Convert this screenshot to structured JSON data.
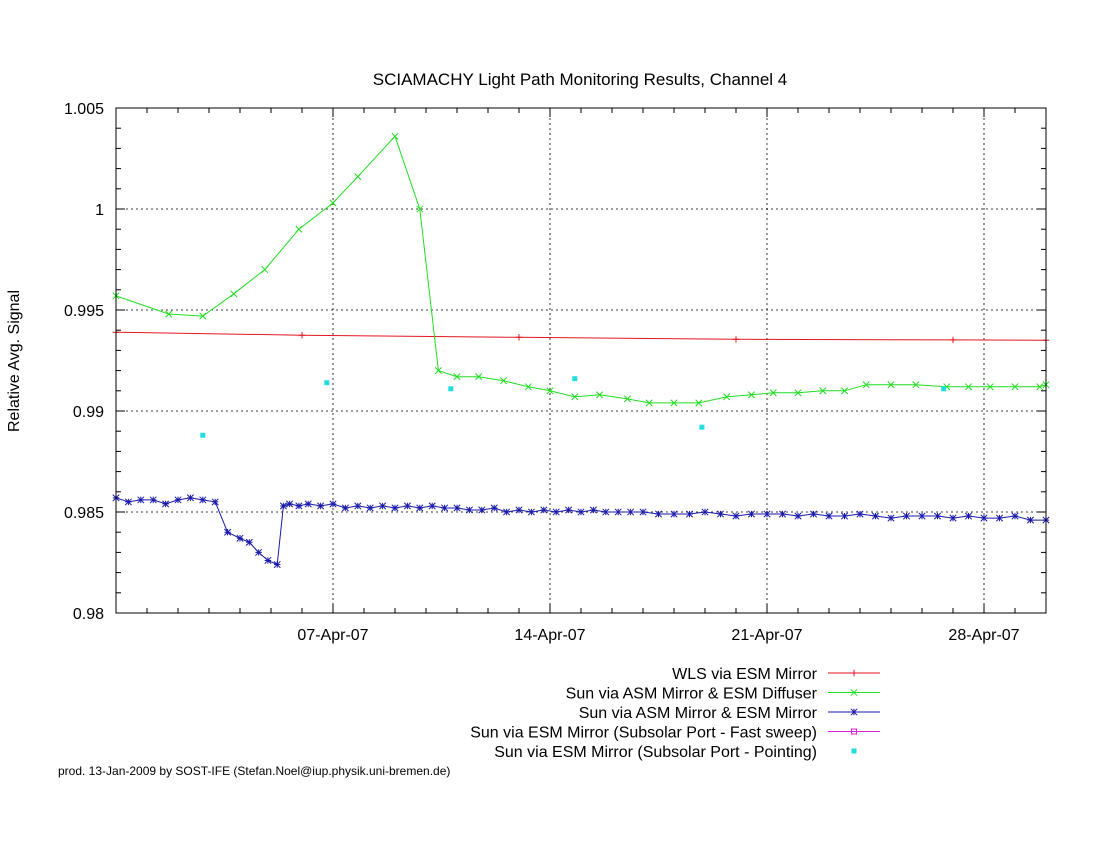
{
  "chart_data": {
    "type": "line",
    "title": "SCIAMACHY Light Path Monitoring Results, Channel 4",
    "xlabel": "",
    "ylabel": "Relative Avg. Signal",
    "xlim": [
      0.0,
      30.0
    ],
    "ylim": [
      0.98,
      1.005
    ],
    "x_unit": "days since 01-Apr-07",
    "x_ticks": [
      {
        "x": 7,
        "label": "07-Apr-07"
      },
      {
        "x": 14,
        "label": "14-Apr-07"
      },
      {
        "x": 21,
        "label": "21-Apr-07"
      },
      {
        "x": 28,
        "label": "28-Apr-07"
      }
    ],
    "y_ticks": [
      {
        "y": 0.98,
        "label": "0.98"
      },
      {
        "y": 0.985,
        "label": "0.985"
      },
      {
        "y": 0.99,
        "label": "0.99"
      },
      {
        "y": 0.995,
        "label": "0.995"
      },
      {
        "y": 1.0,
        "label": "1"
      },
      {
        "y": 1.005,
        "label": "1.005"
      }
    ],
    "grid": true,
    "legend_position": "bottom",
    "series": [
      {
        "name": "WLS via ESM Mirror",
        "color": "#e3161e",
        "marker": "plus",
        "style": "linespoints",
        "x": [
          0.0,
          6.0,
          13.0,
          20.0,
          27.0,
          30.0
        ],
        "y": [
          0.9939,
          0.99375,
          0.99365,
          0.99355,
          0.99352,
          0.9935
        ]
      },
      {
        "name": "Sun via ASM Mirror & ESM Diffuser",
        "color": "#22dd22",
        "marker": "cross",
        "style": "linespoints",
        "x": [
          0.0,
          1.7,
          2.8,
          3.8,
          4.8,
          5.9,
          7.0,
          7.8,
          9.0,
          9.8,
          10.4,
          11.0,
          11.7,
          12.5,
          13.3,
          14.0,
          14.8,
          15.6,
          16.5,
          17.2,
          18.0,
          18.8,
          19.7,
          20.5,
          21.2,
          22.0,
          22.8,
          23.5,
          24.2,
          25.0,
          25.8,
          26.8,
          27.5,
          28.2,
          29.0,
          29.8,
          30.0
        ],
        "y": [
          0.9957,
          0.9948,
          0.9947,
          0.9958,
          0.997,
          0.999,
          1.0003,
          1.0016,
          1.0036,
          1.0,
          0.992,
          0.9917,
          0.9917,
          0.9915,
          0.9912,
          0.991,
          0.9907,
          0.9908,
          0.9906,
          0.9904,
          0.9904,
          0.9904,
          0.9907,
          0.9908,
          0.9909,
          0.9909,
          0.991,
          0.991,
          0.9913,
          0.9913,
          0.9913,
          0.9912,
          0.9912,
          0.9912,
          0.9912,
          0.9912,
          0.9913
        ]
      },
      {
        "name": "Sun via ASM Mirror & ESM Mirror",
        "color": "#1a1aaa",
        "marker": "star",
        "style": "linespoints",
        "x": [
          0.0,
          0.4,
          0.8,
          1.2,
          1.6,
          2.0,
          2.4,
          2.8,
          3.2,
          3.6,
          4.0,
          4.3,
          4.6,
          4.9,
          5.2,
          5.4,
          5.6,
          5.9,
          6.2,
          6.6,
          7.0,
          7.4,
          7.8,
          8.2,
          8.6,
          9.0,
          9.4,
          9.8,
          10.2,
          10.6,
          11.0,
          11.4,
          11.8,
          12.2,
          12.6,
          13.0,
          13.4,
          13.8,
          14.2,
          14.6,
          15.0,
          15.4,
          15.8,
          16.2,
          16.6,
          17.0,
          17.5,
          18.0,
          18.5,
          19.0,
          19.5,
          20.0,
          20.5,
          21.0,
          21.5,
          22.0,
          22.5,
          23.0,
          23.5,
          24.0,
          24.5,
          25.0,
          25.5,
          26.0,
          26.5,
          27.0,
          27.5,
          28.0,
          28.5,
          29.0,
          29.5,
          30.0
        ],
        "y": [
          0.9857,
          0.9855,
          0.9856,
          0.9856,
          0.9854,
          0.9856,
          0.9857,
          0.9856,
          0.9855,
          0.984,
          0.9837,
          0.9835,
          0.983,
          0.9826,
          0.9824,
          0.9853,
          0.9854,
          0.9853,
          0.9854,
          0.9853,
          0.9854,
          0.9852,
          0.9853,
          0.9852,
          0.9853,
          0.9852,
          0.9853,
          0.9852,
          0.9853,
          0.9852,
          0.9852,
          0.9851,
          0.9851,
          0.9852,
          0.985,
          0.9851,
          0.985,
          0.9851,
          0.985,
          0.9851,
          0.985,
          0.9851,
          0.985,
          0.985,
          0.985,
          0.985,
          0.9849,
          0.9849,
          0.9849,
          0.985,
          0.9849,
          0.9848,
          0.9849,
          0.9849,
          0.9849,
          0.9848,
          0.9849,
          0.9848,
          0.9848,
          0.9849,
          0.9848,
          0.9847,
          0.9848,
          0.9848,
          0.9848,
          0.9847,
          0.9848,
          0.9847,
          0.9847,
          0.9848,
          0.9846,
          0.9846
        ]
      },
      {
        "name": "Sun via ESM Mirror (Subsolar Port - Fast sweep)",
        "color": "#dd22dd",
        "marker": "box",
        "style": "linespoints",
        "x": [],
        "y": []
      },
      {
        "name": "Sun via ESM Mirror (Subsolar Port - Pointing)",
        "color": "#22dddd",
        "marker": "square",
        "style": "points",
        "x": [
          2.8,
          6.8,
          10.8,
          14.8,
          18.9,
          26.7
        ],
        "y": [
          0.9888,
          0.9914,
          0.9911,
          0.9916,
          0.9892,
          0.9911
        ]
      }
    ]
  },
  "footer": "prod. 13-Jan-2009 by SOST-IFE (Stefan.Noel@iup.physik.uni-bremen.de)"
}
